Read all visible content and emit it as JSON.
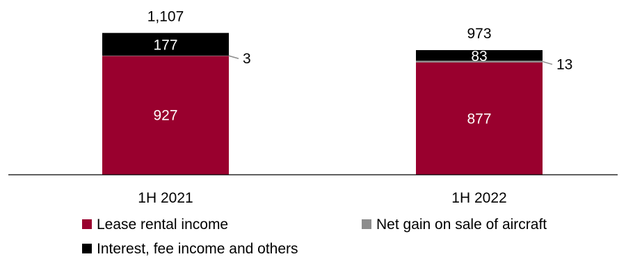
{
  "chart_data": {
    "type": "bar",
    "stacked": true,
    "categories": [
      "1H 2021",
      "1H 2022"
    ],
    "series": [
      {
        "name": "Lease rental income",
        "values": [
          927,
          877
        ],
        "color": "#99002E"
      },
      {
        "name": "Net gain on sale of aircraft",
        "values": [
          3,
          13
        ],
        "color": "#8C8C8C"
      },
      {
        "name": "Interest, fee income and others",
        "values": [
          177,
          83
        ],
        "color": "#000000"
      }
    ],
    "totals": [
      "1,107",
      "973"
    ],
    "segment_labels": [
      [
        "927",
        "3",
        "177"
      ],
      [
        "877",
        "13",
        "83"
      ]
    ],
    "grid": false,
    "legend_position": "bottom"
  }
}
